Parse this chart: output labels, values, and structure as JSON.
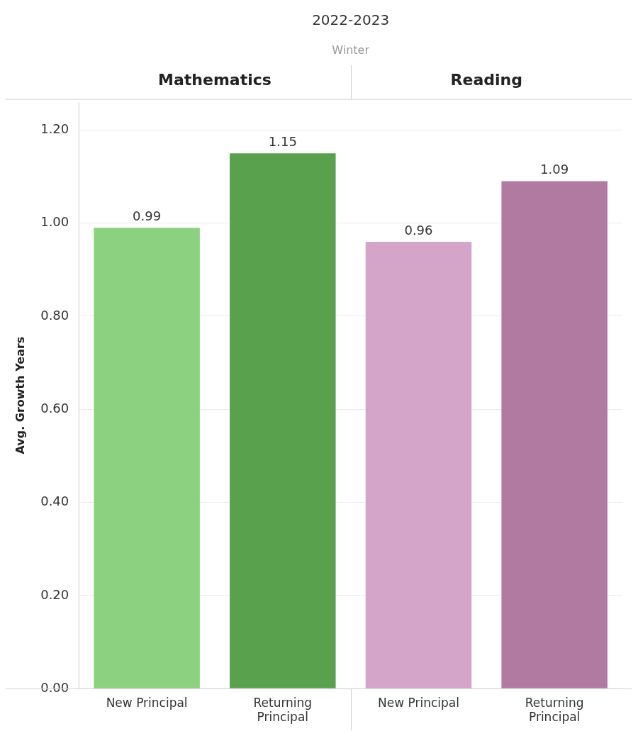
{
  "chart_data": {
    "type": "bar",
    "title": "2022-2023",
    "subtitle": "Winter",
    "ylabel": "Avg. Growth Years",
    "categories": [
      "New Principal",
      "Returning Principal",
      "New Principal",
      "Returning Principal"
    ],
    "values": [
      0.99,
      1.15,
      0.96,
      1.09
    ],
    "colors": [
      "#8bd17f",
      "#5aa14e",
      "#d4a5c9",
      "#b07aa1"
    ],
    "annotations": [
      "Mathematics",
      "Reading"
    ],
    "ylim": [
      0,
      1.26
    ],
    "yticks": [
      {
        "value": 0,
        "label": "0.00"
      },
      {
        "value": 0.2,
        "label": "0.20"
      },
      {
        "value": 0.4,
        "label": "0.40"
      },
      {
        "value": 0.6,
        "label": "0.60"
      },
      {
        "value": 0.8,
        "label": "0.80"
      },
      {
        "value": 1,
        "label": "1.00"
      },
      {
        "value": 1.2,
        "label": "1.20"
      }
    ],
    "grid": "y",
    "legend": false,
    "data_labels": true
  }
}
